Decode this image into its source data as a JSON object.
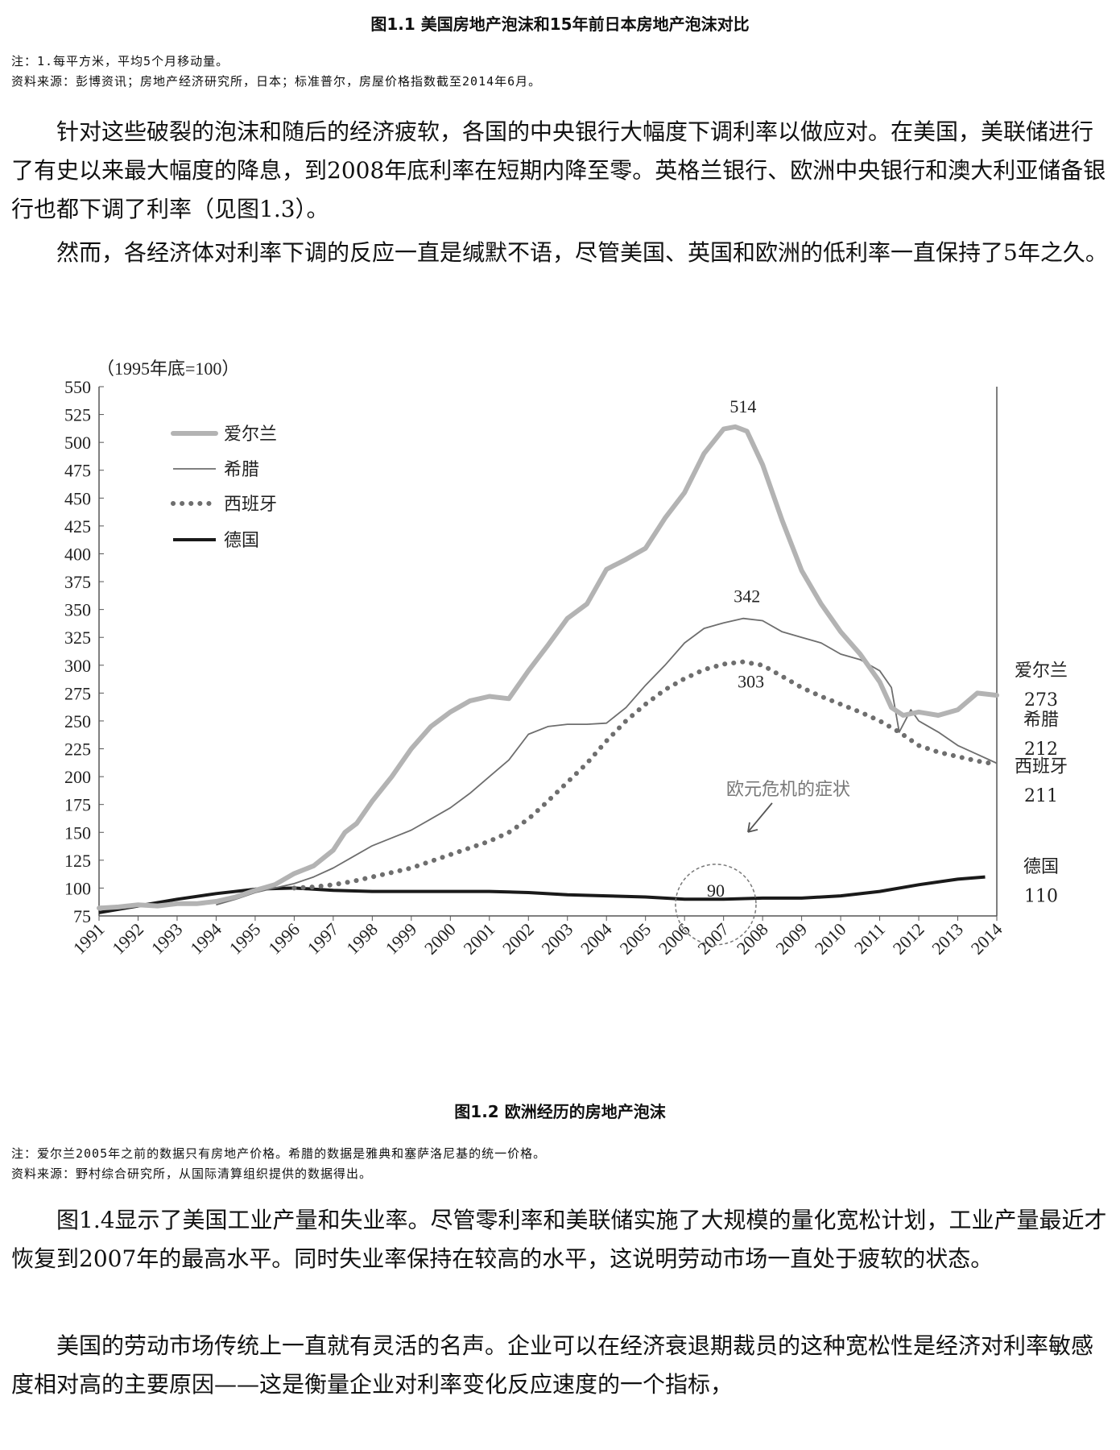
{
  "figure_prev": {
    "title": "图1.1 美国房地产泡沫和15年前日本房地产泡沫对比",
    "notes": [
      "注：1.每平方米，平均5个月移动量。",
      "资料来源：彭博资讯；房地产经济研究所，日本；标准普尔，房屋价格指数截至2014年6月。"
    ]
  },
  "paragraphs_top": [
    "针对这些破裂的泡沫和随后的经济疲软，各国的中央银行大幅度下调利率以做应对。在美国，美联储进行了有史以来最大幅度的降息，到2008年底利率在短期内降至零。英格兰银行、欧洲中央银行和澳大利亚储备银行也都下调了利率（见图1.3）。",
    "然而，各经济体对利率下调的反应一直是缄默不语，尽管美国、英国和欧洲的低利率一直保持了5年之久。"
  ],
  "chart_data": {
    "type": "line",
    "unit_label": "（1995年底=100）",
    "ylim": [
      75,
      550
    ],
    "yticks": [
      75,
      100,
      125,
      150,
      175,
      200,
      225,
      250,
      275,
      300,
      325,
      350,
      375,
      400,
      425,
      450,
      475,
      500,
      525,
      550
    ],
    "xlim": [
      1991,
      2014
    ],
    "xticks": [
      "1991",
      "1992",
      "1993",
      "1994",
      "1995",
      "1996",
      "1997",
      "1998",
      "1999",
      "2000",
      "2001",
      "2002",
      "2003",
      "2004",
      "2005",
      "2006",
      "2007",
      "2008",
      "2009",
      "2010",
      "2011",
      "2012",
      "2013",
      "2014"
    ],
    "legend_position": "top-left",
    "series": [
      {
        "name": "爱尔兰",
        "style": "thick-gray",
        "color": "#b3b3b3",
        "x": [
          1991,
          1991.5,
          1992,
          1992.5,
          1993,
          1993.5,
          1994,
          1994.5,
          1995,
          1995.5,
          1996,
          1996.5,
          1997,
          1997.3,
          1997.6,
          1998,
          1998.5,
          1999,
          1999.5,
          2000,
          2000.5,
          2001,
          2001.5,
          2002,
          2002.5,
          2003,
          2003.5,
          2004,
          2004.5,
          2005,
          2005.5,
          2006,
          2006.5,
          2007,
          2007.3,
          2007.6,
          2008,
          2008.5,
          2009,
          2009.5,
          2010,
          2010.5,
          2011,
          2011.3,
          2011.6,
          2012,
          2012.5,
          2013,
          2013.5,
          2014
        ],
        "values": [
          82,
          83,
          85,
          84,
          86,
          86,
          88,
          92,
          98,
          103,
          113,
          120,
          134,
          150,
          158,
          178,
          200,
          225,
          245,
          258,
          268,
          272,
          270,
          295,
          318,
          342,
          355,
          386,
          395,
          405,
          432,
          455,
          490,
          512,
          514,
          510,
          480,
          430,
          385,
          355,
          330,
          310,
          285,
          262,
          255,
          258,
          255,
          260,
          275,
          273
        ]
      },
      {
        "name": "希腊",
        "style": "thin-gray",
        "color": "#6e6e6e",
        "x": [
          1994,
          1994.5,
          1995,
          1995.5,
          1996,
          1996.5,
          1997,
          1997.5,
          1998,
          1998.5,
          1999,
          1999.5,
          2000,
          2000.5,
          2001,
          2001.5,
          2002,
          2002.5,
          2003,
          2003.5,
          2004,
          2004.5,
          2005,
          2005.5,
          2006,
          2006.5,
          2007,
          2007.5,
          2008,
          2008.5,
          2009,
          2009.5,
          2010,
          2010.5,
          2011,
          2011.3,
          2011.5,
          2011.8,
          2012,
          2012.5,
          2013,
          2013.5,
          2014
        ],
        "values": [
          85,
          90,
          96,
          100,
          104,
          110,
          118,
          128,
          138,
          145,
          152,
          162,
          172,
          185,
          200,
          215,
          238,
          245,
          247,
          247,
          248,
          262,
          282,
          300,
          320,
          333,
          338,
          342,
          340,
          330,
          325,
          320,
          310,
          305,
          295,
          280,
          240,
          260,
          250,
          240,
          228,
          220,
          212
        ]
      },
      {
        "name": "西班牙",
        "style": "dotted",
        "color": "#6e6e6e",
        "x": [
          1996,
          1996.5,
          1997,
          1997.5,
          1998,
          1998.5,
          1999,
          1999.5,
          2000,
          2000.5,
          2001,
          2001.5,
          2002,
          2002.5,
          2003,
          2003.5,
          2004,
          2004.5,
          2005,
          2005.5,
          2006,
          2006.5,
          2007,
          2007.5,
          2008,
          2008.5,
          2009,
          2009.5,
          2010,
          2010.5,
          2011,
          2011.5,
          2012,
          2012.5,
          2013,
          2013.5,
          2014
        ],
        "values": [
          100,
          101,
          103,
          106,
          110,
          114,
          118,
          124,
          130,
          136,
          142,
          150,
          162,
          178,
          195,
          212,
          232,
          250,
          265,
          278,
          288,
          296,
          301,
          303,
          300,
          290,
          280,
          272,
          265,
          258,
          250,
          240,
          228,
          222,
          218,
          214,
          211
        ]
      },
      {
        "name": "德国",
        "style": "thick-black",
        "color": "#1a1a1a",
        "x": [
          1991,
          1992,
          1993,
          1994,
          1995,
          1996,
          1997,
          1998,
          1999,
          2000,
          2001,
          2002,
          2003,
          2004,
          2005,
          2006,
          2007,
          2008,
          2009,
          2010,
          2011,
          2012,
          2013,
          2013.7
        ],
        "values": [
          78,
          84,
          90,
          95,
          99,
          100,
          98,
          97,
          97,
          97,
          97,
          96,
          94,
          93,
          92,
          90,
          90,
          91,
          91,
          93,
          97,
          103,
          108,
          110
        ]
      }
    ],
    "annotations": {
      "peak_ireland": "514",
      "peak_greece": "342",
      "peak_spain": "303",
      "germany_dip": "90",
      "euro_crisis": "欧元危机的症状"
    },
    "end_labels": [
      {
        "name": "爱尔兰",
        "value": "273"
      },
      {
        "name": "希腊",
        "value": "212"
      },
      {
        "name": "西班牙",
        "value": "211"
      },
      {
        "name": "德国",
        "value": "110"
      }
    ]
  },
  "figure_current": {
    "title": "图1.2 欧洲经历的房地产泡沫",
    "notes": [
      "注：爱尔兰2005年之前的数据只有房地产价格。希腊的数据是雅典和塞萨洛尼基的统一价格。",
      "资料来源：野村综合研究所，从国际清算组织提供的数据得出。"
    ]
  },
  "paragraphs_bottom": [
    "图1.4显示了美国工业产量和失业率。尽管零利率和美联储实施了大规模的量化宽松计划，工业产量最近才恢复到2007年的最高水平。同时失业率保持在较高的水平，这说明劳动市场一直处于疲软的状态。",
    "美国的劳动市场传统上一直就有灵活的名声。企业可以在经济衰退期裁员的这种宽松性是经济对利率敏感度相对高的主要原因——这是衡量企业对利率变化反应速度的一个指标，"
  ]
}
